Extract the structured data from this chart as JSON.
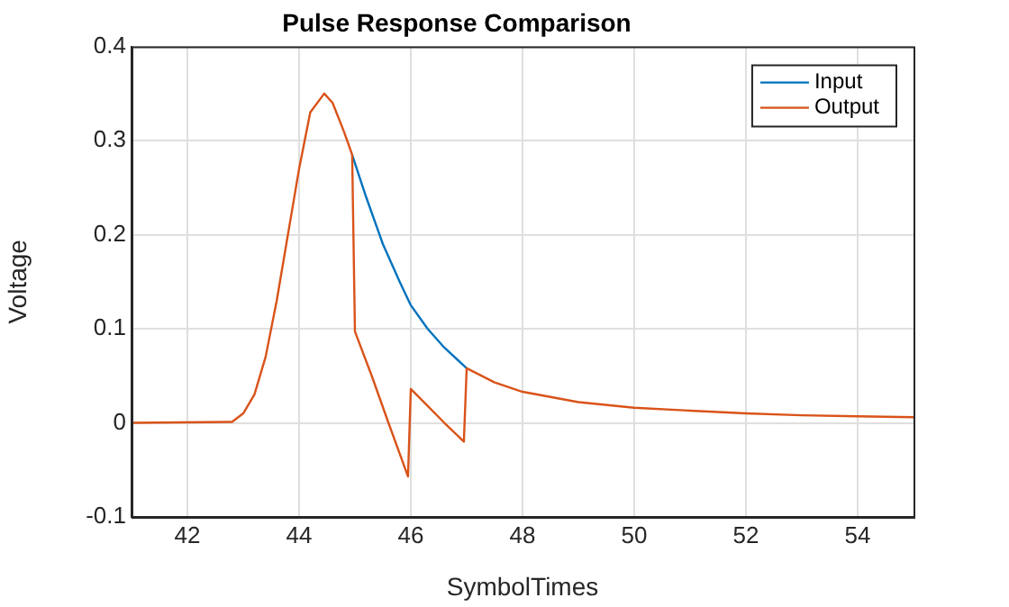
{
  "chart_data": {
    "type": "line",
    "title": "Pulse Response Comparison",
    "xlabel": "SymbolTimes",
    "ylabel": "Voltage",
    "xlim": [
      41,
      55
    ],
    "xticks": [
      42,
      44,
      46,
      48,
      50,
      52,
      54
    ],
    "ylim": [
      -0.1,
      0.4
    ],
    "yticks": [
      -0.1,
      0,
      0.1,
      0.2,
      0.3,
      0.4
    ],
    "grid": true,
    "legend": "top right",
    "marker": "none",
    "line_style": "solid",
    "series": [
      {
        "name": "Input",
        "color": "#0072bd",
        "x": [
          44.95,
          45.2,
          45.5,
          45.8,
          46,
          46.3,
          46.6,
          47
        ],
        "values": [
          0.285,
          0.24,
          0.19,
          0.15,
          0.125,
          0.1,
          0.08,
          0.058
        ]
      },
      {
        "name": "Output",
        "color": "#d95319",
        "x": [
          41,
          42.8,
          43,
          43.2,
          43.4,
          43.6,
          43.8,
          44,
          44.2,
          44.45,
          44.6,
          44.8,
          44.95,
          45,
          45.3,
          45.6,
          45.95,
          46,
          46.3,
          46.6,
          46.95,
          47,
          47.5,
          48,
          49,
          50,
          51,
          52,
          53,
          54,
          55
        ],
        "values": [
          0,
          0.001,
          0.01,
          0.03,
          0.07,
          0.13,
          0.2,
          0.27,
          0.33,
          0.35,
          0.34,
          0.31,
          0.285,
          0.097,
          0.05,
          0,
          -0.057,
          0.036,
          0.018,
          0,
          -0.02,
          0.058,
          0.043,
          0.033,
          0.022,
          0.016,
          0.013,
          0.01,
          0.008,
          0.007,
          0.006
        ]
      }
    ]
  }
}
